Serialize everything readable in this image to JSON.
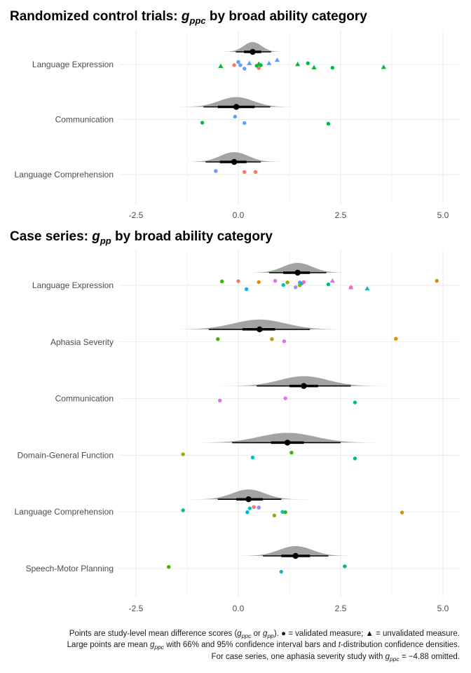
{
  "colors": {
    "density": "#a3a3a3",
    "mean": "#000000",
    "category_palette": [
      "#f8766d",
      "#d89000",
      "#a3a500",
      "#39b600",
      "#00bf7d",
      "#00bfc4",
      "#00b0f6",
      "#9590ff",
      "#e76bf3",
      "#ff62bc"
    ]
  },
  "chart_data": [
    {
      "type": "scatter",
      "title": "Randomized control trials: g_ppc by broad ability category",
      "title_prefix": "Randomized control trials: ",
      "title_symbol": "g",
      "title_subscript": "ppc",
      "title_suffix": " by broad ability category",
      "xlabel": "",
      "ylabel": "",
      "xlim": [
        -3.0,
        5.3
      ],
      "x_ticks": [
        -2.5,
        0.0,
        2.5,
        5.0
      ],
      "x_tick_labels": [
        "-2.5",
        "0.0",
        "2.5",
        "5.0"
      ],
      "grid": true,
      "categories": [
        "Language Expression",
        "Communication",
        "Language Comprehension"
      ],
      "groups": [
        {
          "name": "Language Expression",
          "mean": 0.35,
          "ci66": [
            0.14,
            0.56
          ],
          "ci95": [
            -0.06,
            0.8
          ],
          "points": [
            {
              "x": -0.43,
              "dy": 0.05,
              "shape": "triangle",
              "color": "#00ba38"
            },
            {
              "x": -0.1,
              "dy": 0.02,
              "shape": "circle",
              "color": "#f8766d"
            },
            {
              "x": 0.0,
              "dy": -0.08,
              "shape": "circle",
              "color": "#619cff"
            },
            {
              "x": 0.05,
              "dy": 0.02,
              "shape": "circle",
              "color": "#619cff"
            },
            {
              "x": 0.15,
              "dy": 0.13,
              "shape": "circle",
              "color": "#619cff"
            },
            {
              "x": 0.27,
              "dy": -0.04,
              "shape": "triangle",
              "color": "#619cff"
            },
            {
              "x": 0.45,
              "dy": 0.04,
              "shape": "circle",
              "color": "#00ba38"
            },
            {
              "x": 0.5,
              "dy": -0.02,
              "shape": "triangle",
              "color": "#00ba38"
            },
            {
              "x": 0.55,
              "dy": 0.02,
              "shape": "circle",
              "color": "#00ba38"
            },
            {
              "x": 0.5,
              "dy": 0.11,
              "shape": "circle",
              "color": "#f8766d"
            },
            {
              "x": 0.75,
              "dy": -0.04,
              "shape": "triangle",
              "color": "#619cff"
            },
            {
              "x": 0.95,
              "dy": -0.14,
              "shape": "triangle",
              "color": "#619cff"
            },
            {
              "x": 1.45,
              "dy": -0.01,
              "shape": "triangle",
              "color": "#00ba38"
            },
            {
              "x": 1.7,
              "dy": -0.04,
              "shape": "circle",
              "color": "#00ba38"
            },
            {
              "x": 1.85,
              "dy": 0.09,
              "shape": "triangle",
              "color": "#00ba38"
            },
            {
              "x": 2.3,
              "dy": 0.1,
              "shape": "circle",
              "color": "#00ba38"
            },
            {
              "x": 3.55,
              "dy": 0.08,
              "shape": "triangle",
              "color": "#00ba38"
            }
          ]
        },
        {
          "name": "Communication",
          "mean": -0.05,
          "ci66": [
            -0.5,
            0.4
          ],
          "ci95": [
            -0.85,
            0.78
          ],
          "points": [
            {
              "x": -0.88,
              "dy": 0.1,
              "shape": "circle",
              "color": "#00ba38"
            },
            {
              "x": -0.08,
              "dy": -0.09,
              "shape": "circle",
              "color": "#619cff"
            },
            {
              "x": 0.15,
              "dy": 0.11,
              "shape": "circle",
              "color": "#619cff"
            },
            {
              "x": 2.2,
              "dy": 0.13,
              "shape": "circle",
              "color": "#00ba38"
            }
          ]
        },
        {
          "name": "Language Comprehension",
          "mean": -0.1,
          "ci66": [
            -0.45,
            0.2
          ],
          "ci95": [
            -0.8,
            0.55
          ],
          "points": [
            {
              "x": -0.55,
              "dy": -0.11,
              "shape": "circle",
              "color": "#619cff"
            },
            {
              "x": 0.15,
              "dy": -0.08,
              "shape": "circle",
              "color": "#f8766d"
            },
            {
              "x": 0.42,
              "dy": -0.08,
              "shape": "circle",
              "color": "#f8766d"
            }
          ]
        }
      ]
    },
    {
      "type": "scatter",
      "title": "Case series: g_pp by broad ability category",
      "title_prefix": "Case series: ",
      "title_symbol": "g",
      "title_subscript": "pp",
      "title_suffix": " by broad ability category",
      "xlabel": "",
      "ylabel": "",
      "xlim": [
        -3.0,
        5.3
      ],
      "x_ticks": [
        -2.5,
        0.0,
        2.5,
        5.0
      ],
      "x_tick_labels": [
        "-2.5",
        "0.0",
        "2.5",
        "5.0"
      ],
      "grid": true,
      "categories": [
        "Language Expression",
        "Aphasia Severity",
        "Communication",
        "Domain-General Function",
        "Language Comprehension",
        "Speech-Motor Planning"
      ],
      "groups": [
        {
          "name": "Language Expression",
          "mean": 1.45,
          "ci66": [
            1.1,
            1.75
          ],
          "ci95": [
            0.75,
            2.15
          ],
          "points": [
            {
              "x": -0.4,
              "dy": -0.12,
              "shape": "circle",
              "color": "#39b600"
            },
            {
              "x": 0.0,
              "dy": -0.13,
              "shape": "circle",
              "color": "#f8766d"
            },
            {
              "x": 0.2,
              "dy": 0.12,
              "shape": "circle",
              "color": "#00b0f6"
            },
            {
              "x": 0.5,
              "dy": -0.1,
              "shape": "circle",
              "color": "#d89000"
            },
            {
              "x": 0.9,
              "dy": -0.14,
              "shape": "circle",
              "color": "#e76bf3"
            },
            {
              "x": 1.1,
              "dy": -0.01,
              "shape": "circle",
              "color": "#00bfc4"
            },
            {
              "x": 1.2,
              "dy": -0.09,
              "shape": "circle",
              "color": "#a3a500"
            },
            {
              "x": 1.4,
              "dy": 0.06,
              "shape": "circle",
              "color": "#9590ff"
            },
            {
              "x": 1.5,
              "dy": 0.0,
              "shape": "circle",
              "color": "#a3a500"
            },
            {
              "x": 1.5,
              "dy": -0.09,
              "shape": "circle",
              "color": "#619cff"
            },
            {
              "x": 1.55,
              "dy": -0.06,
              "shape": "circle",
              "color": "#00bfc4"
            },
            {
              "x": 1.6,
              "dy": -0.1,
              "shape": "circle",
              "color": "#ff62bc"
            },
            {
              "x": 2.2,
              "dy": -0.03,
              "shape": "circle",
              "color": "#00bf7d"
            },
            {
              "x": 2.3,
              "dy": -0.14,
              "shape": "triangle",
              "color": "#e76bf3"
            },
            {
              "x": 2.75,
              "dy": 0.07,
              "shape": "circle",
              "color": "#f8766d"
            },
            {
              "x": 2.75,
              "dy": 0.06,
              "shape": "triangle",
              "color": "#e76bf3"
            },
            {
              "x": 3.15,
              "dy": 0.1,
              "shape": "triangle",
              "color": "#00bfc4"
            },
            {
              "x": 4.85,
              "dy": -0.14,
              "shape": "circle",
              "color": "#d89000"
            }
          ]
        },
        {
          "name": "Aphasia Severity",
          "mean": 0.52,
          "ci66": [
            0.1,
            0.9
          ],
          "ci95": [
            -0.72,
            1.75
          ],
          "points": [
            {
              "x": -0.5,
              "dy": -0.09,
              "shape": "circle",
              "color": "#39b600"
            },
            {
              "x": 0.82,
              "dy": -0.09,
              "shape": "circle",
              "color": "#d89000"
            },
            {
              "x": 1.12,
              "dy": -0.02,
              "shape": "circle",
              "color": "#e76bf3"
            },
            {
              "x": 3.85,
              "dy": -0.1,
              "shape": "circle",
              "color": "#d89000"
            }
          ]
        },
        {
          "name": "Communication",
          "mean": 1.6,
          "ci66": [
            1.25,
            1.95
          ],
          "ci95": [
            0.45,
            2.75
          ],
          "points": [
            {
              "x": -0.45,
              "dy": 0.06,
              "shape": "circle",
              "color": "#e76bf3"
            },
            {
              "x": 1.15,
              "dy": -0.01,
              "shape": "circle",
              "color": "#e76bf3"
            },
            {
              "x": 2.85,
              "dy": 0.12,
              "shape": "circle",
              "color": "#00bf7d"
            }
          ]
        },
        {
          "name": "Domain-General Function",
          "mean": 1.2,
          "ci66": [
            0.8,
            1.6
          ],
          "ci95": [
            -0.15,
            2.5
          ],
          "points": [
            {
              "x": -1.35,
              "dy": -0.03,
              "shape": "circle",
              "color": "#a3a500"
            },
            {
              "x": 0.35,
              "dy": 0.07,
              "shape": "circle",
              "color": "#00bfc4"
            },
            {
              "x": 1.3,
              "dy": -0.08,
              "shape": "circle",
              "color": "#39b600"
            },
            {
              "x": 2.85,
              "dy": 0.1,
              "shape": "circle",
              "color": "#00bf7d"
            }
          ]
        },
        {
          "name": "Language Comprehension",
          "mean": 0.25,
          "ci66": [
            -0.05,
            0.6
          ],
          "ci95": [
            -0.5,
            1.05
          ],
          "points": [
            {
              "x": -1.35,
              "dy": -0.05,
              "shape": "circle",
              "color": "#00bf7d"
            },
            {
              "x": 0.22,
              "dy": 0.01,
              "shape": "circle",
              "color": "#00b0f6"
            },
            {
              "x": 0.28,
              "dy": -0.11,
              "shape": "circle",
              "color": "#00bfc4"
            },
            {
              "x": 0.38,
              "dy": -0.15,
              "shape": "circle",
              "color": "#f8766d"
            },
            {
              "x": 0.5,
              "dy": -0.14,
              "shape": "circle",
              "color": "#e76bf3"
            },
            {
              "x": 0.5,
              "dy": -0.13,
              "shape": "circle",
              "color": "#9590ff"
            },
            {
              "x": 0.88,
              "dy": 0.11,
              "shape": "circle",
              "color": "#a3a500"
            },
            {
              "x": 1.08,
              "dy": 0.0,
              "shape": "circle",
              "color": "#00bfc4"
            },
            {
              "x": 1.15,
              "dy": 0.01,
              "shape": "circle",
              "color": "#39b600"
            },
            {
              "x": 4.0,
              "dy": 0.02,
              "shape": "circle",
              "color": "#d89000"
            }
          ]
        },
        {
          "name": "Speech-Motor Planning",
          "mean": 1.4,
          "ci66": [
            1.05,
            1.75
          ],
          "ci95": [
            0.6,
            2.2
          ],
          "points": [
            {
              "x": -1.7,
              "dy": -0.05,
              "shape": "circle",
              "color": "#39b600"
            },
            {
              "x": 1.05,
              "dy": 0.1,
              "shape": "circle",
              "color": "#00bfc4"
            },
            {
              "x": 2.6,
              "dy": -0.07,
              "shape": "circle",
              "color": "#00bf7d"
            }
          ]
        }
      ]
    }
  ],
  "caption": {
    "line1": {
      "pre": "Points are study-level mean difference scores (",
      "g1": "g",
      "s1": "ppc",
      "mid": " or ",
      "g2": "g",
      "s2": "pp",
      "post": "). ● = validated measure; ▲ = unvalidated measure."
    },
    "line2": {
      "pre": "Large points are mean ",
      "g1": "g",
      "s1": "ppc",
      "mid": " with 66% and 95% confidence interval bars and ",
      "ital": "t",
      "post": "-distribution confidence densities."
    },
    "line3": {
      "pre": "For case series, one aphasia severity study with ",
      "g1": "g",
      "s1": "ppc",
      "post": " = −4.88 omitted."
    }
  }
}
